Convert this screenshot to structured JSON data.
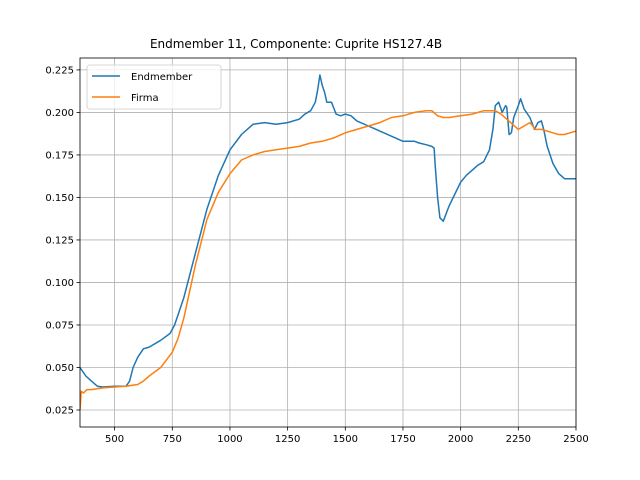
{
  "chart_data": {
    "type": "line",
    "title": "Endmember 11, Componente: Cuprite HS127.4B",
    "xlabel": "",
    "ylabel": "",
    "xlim": [
      350,
      2500
    ],
    "ylim": [
      0.015,
      0.232
    ],
    "xticks": [
      500,
      750,
      1000,
      1250,
      1500,
      1750,
      2000,
      2250,
      2500
    ],
    "yticks": [
      0.025,
      0.05,
      0.075,
      0.1,
      0.125,
      0.15,
      0.175,
      0.2,
      0.225
    ],
    "xtick_labels": [
      "500",
      "750",
      "1000",
      "1250",
      "1500",
      "1750",
      "2000",
      "2250",
      "2500"
    ],
    "ytick_labels": [
      "0.025",
      "0.050",
      "0.075",
      "0.100",
      "0.125",
      "0.150",
      "0.175",
      "0.200",
      "0.225"
    ],
    "grid": true,
    "legend_position": "top-left",
    "series": [
      {
        "name": "Endmember",
        "color": "#1f77b4",
        "points": [
          [
            350,
            0.05
          ],
          [
            375,
            0.045
          ],
          [
            400,
            0.042
          ],
          [
            425,
            0.039
          ],
          [
            450,
            0.0385
          ],
          [
            500,
            0.039
          ],
          [
            550,
            0.039
          ],
          [
            565,
            0.042
          ],
          [
            580,
            0.05
          ],
          [
            600,
            0.056
          ],
          [
            625,
            0.061
          ],
          [
            650,
            0.062
          ],
          [
            700,
            0.066
          ],
          [
            740,
            0.07
          ],
          [
            760,
            0.075
          ],
          [
            800,
            0.091
          ],
          [
            850,
            0.117
          ],
          [
            900,
            0.143
          ],
          [
            950,
            0.163
          ],
          [
            1000,
            0.178
          ],
          [
            1050,
            0.187
          ],
          [
            1100,
            0.193
          ],
          [
            1150,
            0.194
          ],
          [
            1200,
            0.193
          ],
          [
            1250,
            0.194
          ],
          [
            1300,
            0.196
          ],
          [
            1325,
            0.199
          ],
          [
            1350,
            0.201
          ],
          [
            1370,
            0.206
          ],
          [
            1380,
            0.213
          ],
          [
            1390,
            0.222
          ],
          [
            1400,
            0.216
          ],
          [
            1410,
            0.212
          ],
          [
            1420,
            0.206
          ],
          [
            1440,
            0.206
          ],
          [
            1460,
            0.199
          ],
          [
            1480,
            0.198
          ],
          [
            1500,
            0.199
          ],
          [
            1525,
            0.198
          ],
          [
            1550,
            0.195
          ],
          [
            1600,
            0.192
          ],
          [
            1650,
            0.189
          ],
          [
            1700,
            0.186
          ],
          [
            1750,
            0.183
          ],
          [
            1800,
            0.183
          ],
          [
            1820,
            0.182
          ],
          [
            1850,
            0.181
          ],
          [
            1875,
            0.18
          ],
          [
            1885,
            0.179
          ],
          [
            1890,
            0.168
          ],
          [
            1900,
            0.15
          ],
          [
            1910,
            0.138
          ],
          [
            1925,
            0.136
          ],
          [
            1950,
            0.145
          ],
          [
            1975,
            0.152
          ],
          [
            2000,
            0.159
          ],
          [
            2025,
            0.163
          ],
          [
            2050,
            0.166
          ],
          [
            2075,
            0.169
          ],
          [
            2100,
            0.171
          ],
          [
            2125,
            0.178
          ],
          [
            2140,
            0.19
          ],
          [
            2150,
            0.204
          ],
          [
            2165,
            0.206
          ],
          [
            2180,
            0.2
          ],
          [
            2195,
            0.204
          ],
          [
            2200,
            0.203
          ],
          [
            2210,
            0.187
          ],
          [
            2220,
            0.188
          ],
          [
            2230,
            0.197
          ],
          [
            2250,
            0.204
          ],
          [
            2260,
            0.208
          ],
          [
            2275,
            0.202
          ],
          [
            2300,
            0.197
          ],
          [
            2320,
            0.19
          ],
          [
            2335,
            0.194
          ],
          [
            2350,
            0.195
          ],
          [
            2360,
            0.19
          ],
          [
            2375,
            0.18
          ],
          [
            2400,
            0.17
          ],
          [
            2425,
            0.164
          ],
          [
            2450,
            0.161
          ],
          [
            2475,
            0.161
          ],
          [
            2500,
            0.161
          ]
        ]
      },
      {
        "name": "Firma",
        "color": "#ff7f0e",
        "points": [
          [
            350,
            0.025
          ],
          [
            355,
            0.036
          ],
          [
            365,
            0.035
          ],
          [
            380,
            0.037
          ],
          [
            400,
            0.037
          ],
          [
            450,
            0.038
          ],
          [
            500,
            0.0385
          ],
          [
            550,
            0.039
          ],
          [
            600,
            0.04
          ],
          [
            625,
            0.042
          ],
          [
            650,
            0.045
          ],
          [
            700,
            0.05
          ],
          [
            750,
            0.059
          ],
          [
            775,
            0.067
          ],
          [
            800,
            0.079
          ],
          [
            850,
            0.11
          ],
          [
            900,
            0.137
          ],
          [
            950,
            0.153
          ],
          [
            1000,
            0.164
          ],
          [
            1050,
            0.172
          ],
          [
            1100,
            0.175
          ],
          [
            1150,
            0.177
          ],
          [
            1200,
            0.178
          ],
          [
            1250,
            0.179
          ],
          [
            1300,
            0.18
          ],
          [
            1350,
            0.182
          ],
          [
            1400,
            0.183
          ],
          [
            1450,
            0.185
          ],
          [
            1500,
            0.188
          ],
          [
            1550,
            0.19
          ],
          [
            1600,
            0.192
          ],
          [
            1650,
            0.194
          ],
          [
            1700,
            0.197
          ],
          [
            1750,
            0.198
          ],
          [
            1800,
            0.2
          ],
          [
            1850,
            0.201
          ],
          [
            1875,
            0.201
          ],
          [
            1900,
            0.198
          ],
          [
            1925,
            0.197
          ],
          [
            1950,
            0.197
          ],
          [
            2000,
            0.198
          ],
          [
            2050,
            0.199
          ],
          [
            2100,
            0.201
          ],
          [
            2150,
            0.201
          ],
          [
            2175,
            0.199
          ],
          [
            2200,
            0.196
          ],
          [
            2225,
            0.193
          ],
          [
            2250,
            0.19
          ],
          [
            2275,
            0.192
          ],
          [
            2300,
            0.194
          ],
          [
            2325,
            0.19
          ],
          [
            2350,
            0.19
          ],
          [
            2375,
            0.189
          ],
          [
            2400,
            0.188
          ],
          [
            2425,
            0.187
          ],
          [
            2450,
            0.187
          ],
          [
            2475,
            0.188
          ],
          [
            2500,
            0.189
          ]
        ]
      }
    ]
  }
}
